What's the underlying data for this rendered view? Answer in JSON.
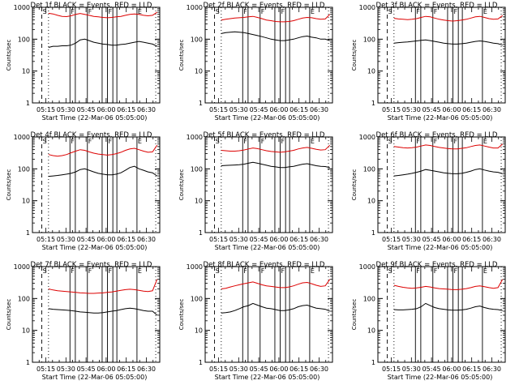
{
  "page": {
    "columns": 3,
    "rows": 3
  },
  "colors": {
    "events": "#000000",
    "lld": "#dd0000",
    "axes": "#000000",
    "background": "#ffffff"
  },
  "chart_data": [
    {
      "type": "line",
      "title": "Det 1f BLACK = Events, RED = LLD",
      "xlabel": "Start Time (22-Mar-06 05:05:00)",
      "ylabel": "Counts/sec",
      "x_tick_labels": [
        "05:15",
        "05:30",
        "05:45",
        "06:00",
        "06:15",
        "06:30"
      ],
      "y_tick_labels": [
        "1",
        "10",
        "100",
        "1000"
      ],
      "ylim": [
        1,
        1000
      ],
      "yscale": "log",
      "markers": [
        "S",
        "F",
        "F",
        "F",
        "E"
      ],
      "series": [
        {
          "key": "lld",
          "values": [
            650,
            620,
            560,
            520,
            510,
            540,
            600,
            640,
            600,
            560,
            520,
            500,
            480,
            470,
            480,
            500,
            520,
            560,
            600,
            620,
            600,
            560,
            540,
            560,
            700
          ]
        },
        {
          "key": "events",
          "values": [
            55,
            60,
            60,
            62,
            62,
            65,
            75,
            95,
            100,
            90,
            80,
            75,
            70,
            68,
            65,
            65,
            68,
            70,
            75,
            80,
            85,
            80,
            75,
            70,
            60
          ]
        }
      ]
    },
    {
      "type": "line",
      "title": "Det 2f BLACK = Events, RED = LLD",
      "xlabel": "Start Time (22-Mar-06 05:05:00)",
      "ylabel": "Counts/sec",
      "x_tick_labels": [
        "05:15",
        "05:30",
        "05:45",
        "06:00",
        "06:15",
        "06:30"
      ],
      "y_tick_labels": [
        "1",
        "10",
        "100",
        "1000"
      ],
      "ylim": [
        1,
        1000
      ],
      "yscale": "log",
      "markers": [
        "S",
        "F",
        "F",
        "F",
        "E"
      ],
      "series": [
        {
          "key": "lld",
          "values": [
            400,
            420,
            440,
            460,
            470,
            480,
            500,
            520,
            480,
            440,
            400,
            380,
            360,
            350,
            350,
            360,
            380,
            420,
            460,
            480,
            470,
            440,
            420,
            430,
            600
          ]
        },
        {
          "key": "events",
          "values": [
            150,
            160,
            165,
            170,
            165,
            160,
            150,
            140,
            130,
            120,
            110,
            100,
            95,
            90,
            90,
            95,
            100,
            110,
            120,
            125,
            115,
            110,
            100,
            100,
            90
          ]
        }
      ]
    },
    {
      "type": "line",
      "title": "Det 3f BLACK = Events, RED = LLD",
      "xlabel": "Start Time (22-Mar-06 05:05:00)",
      "ylabel": "Counts/sec",
      "x_tick_labels": [
        "05:15",
        "05:30",
        "05:45",
        "06:00",
        "06:15",
        "06:30"
      ],
      "y_tick_labels": [
        "1",
        "10",
        "100",
        "1000"
      ],
      "ylim": [
        1,
        1000
      ],
      "yscale": "log",
      "markers": [
        "S",
        "F",
        "F",
        "F",
        "E"
      ],
      "series": [
        {
          "key": "lld",
          "values": [
            450,
            430,
            420,
            410,
            420,
            440,
            480,
            520,
            500,
            460,
            420,
            400,
            380,
            370,
            380,
            400,
            420,
            460,
            500,
            520,
            480,
            440,
            420,
            430,
            550
          ]
        },
        {
          "key": "events",
          "values": [
            75,
            78,
            80,
            82,
            85,
            88,
            92,
            95,
            90,
            85,
            80,
            75,
            72,
            70,
            70,
            72,
            75,
            80,
            85,
            88,
            85,
            80,
            75,
            72,
            65
          ]
        }
      ]
    },
    {
      "type": "line",
      "title": "Det 4f BLACK = Events, RED = LLD",
      "xlabel": "Start Time (22-Mar-06 05:05:00)",
      "ylabel": "Counts/sec",
      "x_tick_labels": [
        "05:15",
        "05:30",
        "05:45",
        "06:00",
        "06:15",
        "06:30"
      ],
      "y_tick_labels": [
        "1",
        "10",
        "100",
        "1000"
      ],
      "ylim": [
        1,
        1000
      ],
      "yscale": "log",
      "markers": [
        "S",
        "F",
        "F",
        "F",
        "E"
      ],
      "series": [
        {
          "key": "lld",
          "values": [
            280,
            260,
            250,
            260,
            280,
            320,
            360,
            400,
            380,
            340,
            310,
            290,
            280,
            270,
            280,
            300,
            330,
            380,
            420,
            440,
            400,
            360,
            330,
            340,
            550
          ]
        },
        {
          "key": "events",
          "values": [
            58,
            60,
            62,
            65,
            68,
            72,
            80,
            95,
            100,
            90,
            80,
            72,
            68,
            65,
            65,
            68,
            75,
            90,
            110,
            120,
            100,
            90,
            80,
            75,
            60
          ]
        }
      ]
    },
    {
      "type": "line",
      "title": "Det 5f BLACK = Events, RED = LLD",
      "xlabel": "Start Time (22-Mar-06 05:05:00)",
      "ylabel": "Counts/sec",
      "x_tick_labels": [
        "05:15",
        "05:30",
        "05:45",
        "06:00",
        "06:15",
        "06:30"
      ],
      "y_tick_labels": [
        "1",
        "10",
        "100",
        "1000"
      ],
      "ylim": [
        1,
        1000
      ],
      "yscale": "log",
      "markers": [
        "S",
        "F",
        "F",
        "F",
        "E"
      ],
      "series": [
        {
          "key": "lld",
          "values": [
            380,
            370,
            360,
            360,
            370,
            390,
            420,
            450,
            430,
            400,
            370,
            350,
            340,
            330,
            340,
            360,
            380,
            420,
            450,
            470,
            440,
            410,
            390,
            400,
            550
          ]
        },
        {
          "key": "events",
          "values": [
            125,
            128,
            130,
            132,
            135,
            140,
            150,
            160,
            150,
            140,
            130,
            120,
            115,
            110,
            110,
            115,
            120,
            130,
            140,
            145,
            135,
            125,
            120,
            118,
            110
          ]
        }
      ]
    },
    {
      "type": "line",
      "title": "Det 6f BLACK = Events, RED = LLD",
      "xlabel": "Start Time (22-Mar-06 05:05:00)",
      "ylabel": "Counts/sec",
      "x_tick_labels": [
        "05:15",
        "05:30",
        "05:45",
        "06:00",
        "06:15",
        "06:30"
      ],
      "y_tick_labels": [
        "1",
        "10",
        "100",
        "1000"
      ],
      "ylim": [
        1,
        1000
      ],
      "yscale": "log",
      "markers": [
        "S",
        "F",
        "F",
        "F",
        "E"
      ],
      "series": [
        {
          "key": "lld",
          "values": [
            500,
            480,
            460,
            450,
            460,
            480,
            520,
            560,
            540,
            500,
            470,
            450,
            430,
            420,
            420,
            440,
            460,
            500,
            540,
            560,
            520,
            480,
            450,
            450,
            600
          ]
        },
        {
          "key": "events",
          "values": [
            60,
            62,
            65,
            68,
            72,
            78,
            85,
            95,
            90,
            85,
            80,
            75,
            72,
            70,
            70,
            72,
            78,
            85,
            95,
            100,
            92,
            85,
            80,
            78,
            70
          ]
        }
      ]
    },
    {
      "type": "line",
      "title": "Det 7f BLACK = Events, RED = LLD",
      "xlabel": "Start Time (22-Mar-06 05:05:00)",
      "ylabel": "Counts/sec",
      "x_tick_labels": [
        "05:15",
        "05:30",
        "05:45",
        "06:00",
        "06:15",
        "06:30"
      ],
      "y_tick_labels": [
        "1",
        "10",
        "100",
        "1000"
      ],
      "ylim": [
        1,
        1000
      ],
      "yscale": "log",
      "markers": [
        "S",
        "F",
        "F",
        "F",
        "E"
      ],
      "series": [
        {
          "key": "lld",
          "values": [
            200,
            185,
            175,
            170,
            165,
            160,
            155,
            150,
            148,
            145,
            145,
            148,
            150,
            155,
            160,
            170,
            180,
            190,
            195,
            190,
            180,
            170,
            165,
            175,
            400
          ]
        },
        {
          "key": "events",
          "values": [
            48,
            46,
            45,
            44,
            43,
            42,
            40,
            38,
            37,
            36,
            35,
            35,
            36,
            38,
            40,
            42,
            45,
            48,
            50,
            48,
            45,
            42,
            40,
            40,
            30
          ]
        }
      ]
    },
    {
      "type": "line",
      "title": "Det 8f BLACK = Events, RED = LLD",
      "xlabel": "Start Time (22-Mar-06 05:05:00)",
      "ylabel": "Counts/sec",
      "x_tick_labels": [
        "05:15",
        "05:30",
        "05:45",
        "06:00",
        "06:15",
        "06:30"
      ],
      "y_tick_labels": [
        "1",
        "10",
        "100",
        "1000"
      ],
      "ylim": [
        1,
        1000
      ],
      "yscale": "log",
      "markers": [
        "S",
        "F",
        "F",
        "F",
        "E"
      ],
      "series": [
        {
          "key": "lld",
          "values": [
            200,
            210,
            230,
            250,
            270,
            290,
            310,
            330,
            300,
            270,
            250,
            240,
            230,
            220,
            220,
            230,
            250,
            280,
            310,
            320,
            290,
            260,
            240,
            250,
            400
          ]
        },
        {
          "key": "events",
          "values": [
            35,
            36,
            38,
            42,
            48,
            55,
            60,
            70,
            62,
            55,
            50,
            48,
            45,
            42,
            42,
            44,
            48,
            55,
            60,
            62,
            55,
            50,
            48,
            46,
            40
          ]
        }
      ]
    },
    {
      "type": "line",
      "title": "Det 9f BLACK = Events, RED = LLD",
      "xlabel": "Start Time (22-Mar-06 05:05:00)",
      "ylabel": "Counts/sec",
      "x_tick_labels": [
        "05:15",
        "05:30",
        "05:45",
        "06:00",
        "06:15",
        "06:30"
      ],
      "y_tick_labels": [
        "1",
        "10",
        "100",
        "1000"
      ],
      "ylim": [
        1,
        1000
      ],
      "yscale": "log",
      "markers": [
        "S",
        "F",
        "F",
        "F",
        "E"
      ],
      "series": [
        {
          "key": "lld",
          "values": [
            260,
            240,
            225,
            215,
            210,
            215,
            225,
            240,
            230,
            215,
            205,
            200,
            195,
            190,
            190,
            195,
            205,
            220,
            240,
            250,
            235,
            220,
            210,
            220,
            400
          ]
        },
        {
          "key": "events",
          "values": [
            45,
            44,
            44,
            45,
            46,
            48,
            55,
            70,
            60,
            52,
            48,
            46,
            44,
            43,
            43,
            44,
            46,
            50,
            55,
            58,
            52,
            48,
            46,
            45,
            42
          ]
        }
      ]
    }
  ]
}
